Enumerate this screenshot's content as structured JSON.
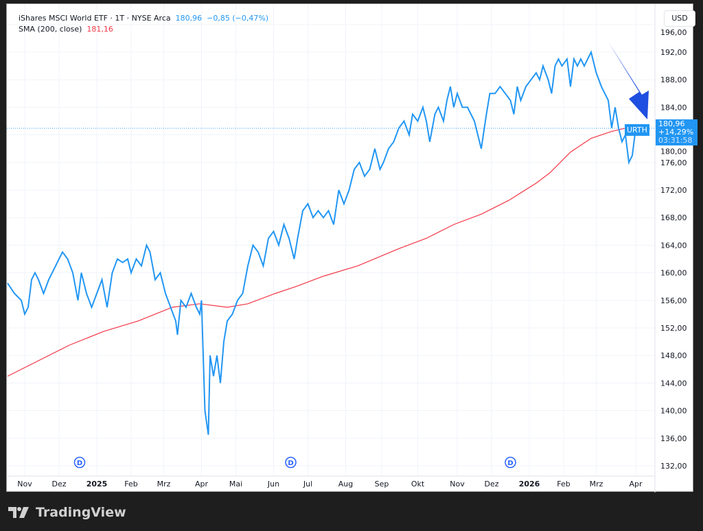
{
  "header": {
    "symbol_line": "iShares MSCI World ETF · 1T · NYSE Arca",
    "price": "180,96",
    "change": "−0,85 (−0,47%)",
    "sma_label": "SMA (200, close)",
    "sma_value": "181,16"
  },
  "currency_button": "USD",
  "last_price_tag": {
    "symbol": "URTH",
    "price": "180,96",
    "change_pct": "+14,29%",
    "countdown": "03:31:58"
  },
  "branding": "TradingView",
  "colors": {
    "price": "#2196f3",
    "sma": "#f23645",
    "arrow": "#1f4fe0",
    "dividend": "#2962ff"
  },
  "chart_data": {
    "type": "line",
    "x_unit": "trading day index",
    "yticks": [
      196,
      192,
      188,
      184,
      180,
      176,
      172,
      168,
      164,
      160,
      156,
      152,
      148,
      144,
      140,
      136,
      132
    ],
    "ytick_labels": [
      "196,00",
      "192,00",
      "188,00",
      "184,00",
      "180,00",
      "176,00",
      "172,00",
      "168,00",
      "164,00",
      "160,00",
      "156,00",
      "152,00",
      "148,00",
      "144,00",
      "140,00",
      "136,00",
      "132,00"
    ],
    "ylim": [
      130.5,
      198
    ],
    "xlim": [
      0,
      376
    ],
    "xticks": [
      {
        "x": 10,
        "label": "Nov"
      },
      {
        "x": 30,
        "label": "Dez"
      },
      {
        "x": 52,
        "label": "2025",
        "bold": true
      },
      {
        "x": 72,
        "label": "Feb"
      },
      {
        "x": 91,
        "label": "Mrz"
      },
      {
        "x": 113,
        "label": "Apr"
      },
      {
        "x": 133,
        "label": "Mai"
      },
      {
        "x": 155,
        "label": "Jun"
      },
      {
        "x": 175,
        "label": "Jul"
      },
      {
        "x": 197,
        "label": "Aug"
      },
      {
        "x": 218,
        "label": "Sep"
      },
      {
        "x": 239,
        "label": "Okt"
      },
      {
        "x": 262,
        "label": "Nov"
      },
      {
        "x": 282,
        "label": "Dez"
      },
      {
        "x": 304,
        "label": "2026",
        "bold": true
      },
      {
        "x": 324,
        "label": "Feb"
      },
      {
        "x": 343,
        "label": "Mrz"
      },
      {
        "x": 366,
        "label": "Apr"
      }
    ],
    "dividends": [
      {
        "x": 42,
        "label": "D"
      },
      {
        "x": 165,
        "label": "D"
      },
      {
        "x": 293,
        "label": "D"
      }
    ],
    "last_price": 180.96,
    "series": [
      {
        "name": "URTH",
        "points": [
          [
            0,
            158.5
          ],
          [
            4,
            157
          ],
          [
            8,
            156
          ],
          [
            10,
            154
          ],
          [
            12,
            155
          ],
          [
            14,
            159
          ],
          [
            16,
            160
          ],
          [
            18,
            159
          ],
          [
            21,
            157
          ],
          [
            24,
            159
          ],
          [
            28,
            161
          ],
          [
            32,
            163
          ],
          [
            35,
            162
          ],
          [
            38,
            160
          ],
          [
            41,
            156
          ],
          [
            43,
            160
          ],
          [
            46,
            157
          ],
          [
            49,
            155
          ],
          [
            52,
            157
          ],
          [
            55,
            159
          ],
          [
            58,
            155
          ],
          [
            61,
            160
          ],
          [
            64,
            162
          ],
          [
            67,
            161.5
          ],
          [
            70,
            162
          ],
          [
            72,
            160
          ],
          [
            75,
            162
          ],
          [
            78,
            161
          ],
          [
            81,
            164
          ],
          [
            83,
            163
          ],
          [
            86,
            159
          ],
          [
            89,
            160
          ],
          [
            92,
            157
          ],
          [
            95,
            155
          ],
          [
            98,
            153
          ],
          [
            99,
            151
          ],
          [
            101,
            156
          ],
          [
            104,
            155
          ],
          [
            107,
            157
          ],
          [
            110,
            155
          ],
          [
            112,
            154
          ],
          [
            113,
            156
          ],
          [
            115,
            140
          ],
          [
            117,
            136.5
          ],
          [
            118,
            148
          ],
          [
            120,
            145
          ],
          [
            122,
            148
          ],
          [
            124,
            144
          ],
          [
            126,
            150
          ],
          [
            128,
            153
          ],
          [
            131,
            154
          ],
          [
            134,
            156
          ],
          [
            137,
            157
          ],
          [
            140,
            161
          ],
          [
            143,
            164
          ],
          [
            146,
            163
          ],
          [
            149,
            161
          ],
          [
            152,
            165
          ],
          [
            155,
            166
          ],
          [
            158,
            164
          ],
          [
            161,
            167
          ],
          [
            164,
            165
          ],
          [
            167,
            162
          ],
          [
            169,
            165
          ],
          [
            172,
            169
          ],
          [
            175,
            170
          ],
          [
            178,
            168
          ],
          [
            181,
            169
          ],
          [
            184,
            168
          ],
          [
            187,
            169
          ],
          [
            190,
            167
          ],
          [
            193,
            172
          ],
          [
            196,
            170
          ],
          [
            199,
            172
          ],
          [
            202,
            175
          ],
          [
            205,
            176
          ],
          [
            208,
            174
          ],
          [
            211,
            175
          ],
          [
            214,
            178
          ],
          [
            217,
            175
          ],
          [
            219,
            176
          ],
          [
            222,
            178
          ],
          [
            225,
            179
          ],
          [
            228,
            181
          ],
          [
            231,
            182
          ],
          [
            234,
            180
          ],
          [
            236,
            183
          ],
          [
            239,
            182
          ],
          [
            242,
            184
          ],
          [
            244,
            182
          ],
          [
            246,
            179
          ],
          [
            249,
            183
          ],
          [
            251,
            184
          ],
          [
            254,
            182
          ],
          [
            256,
            185
          ],
          [
            258,
            187
          ],
          [
            260,
            184
          ],
          [
            262,
            186
          ],
          [
            265,
            184
          ],
          [
            268,
            184
          ],
          [
            272,
            182
          ],
          [
            276,
            178
          ],
          [
            279,
            183
          ],
          [
            281,
            186
          ],
          [
            284,
            186
          ],
          [
            287,
            187
          ],
          [
            290,
            186
          ],
          [
            293,
            185
          ],
          [
            295,
            183
          ],
          [
            297,
            187
          ],
          [
            299,
            185
          ],
          [
            302,
            187
          ],
          [
            305,
            188
          ],
          [
            308,
            189
          ],
          [
            310,
            188
          ],
          [
            312,
            190
          ],
          [
            315,
            188
          ],
          [
            317,
            186
          ],
          [
            319,
            190
          ],
          [
            321,
            191
          ],
          [
            323,
            190
          ],
          [
            326,
            191
          ],
          [
            328,
            187
          ],
          [
            330,
            191
          ],
          [
            332,
            190
          ],
          [
            334,
            191
          ],
          [
            336,
            190
          ],
          [
            338,
            191
          ],
          [
            340,
            192
          ],
          [
            343,
            189
          ],
          [
            346,
            187
          ],
          [
            348,
            186
          ],
          [
            350,
            185
          ],
          [
            352,
            181
          ],
          [
            354,
            184
          ],
          [
            356,
            181
          ],
          [
            358,
            179
          ],
          [
            360,
            180
          ],
          [
            362,
            176
          ],
          [
            364,
            177
          ],
          [
            366,
            181
          ],
          [
            370,
            180.96
          ]
        ]
      },
      {
        "name": "SMA (200, close)",
        "points": [
          [
            0,
            145
          ],
          [
            36,
            149.5
          ],
          [
            56,
            151.5
          ],
          [
            76,
            153
          ],
          [
            96,
            155
          ],
          [
            112,
            155.5
          ],
          [
            128,
            155
          ],
          [
            140,
            155.5
          ],
          [
            156,
            157
          ],
          [
            168,
            158
          ],
          [
            184,
            159.5
          ],
          [
            204,
            161
          ],
          [
            228,
            163.5
          ],
          [
            244,
            165
          ],
          [
            260,
            167
          ],
          [
            276,
            168.5
          ],
          [
            292,
            170.5
          ],
          [
            308,
            173
          ],
          [
            316,
            174.5
          ],
          [
            328,
            177.5
          ],
          [
            340,
            179.5
          ],
          [
            352,
            180.5
          ],
          [
            364,
            181.2
          ],
          [
            370,
            181.16
          ]
        ]
      }
    ]
  }
}
